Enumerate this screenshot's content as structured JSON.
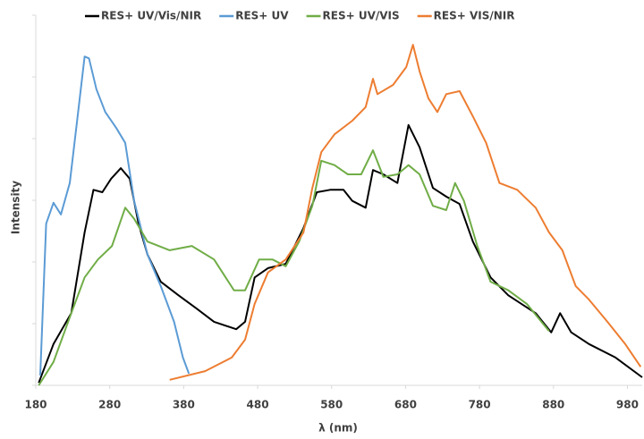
{
  "chart_data": {
    "type": "line",
    "x_label": "λ (nm)",
    "y_label": "Intensity",
    "xlim": [
      180,
      1000
    ],
    "xticks": [
      180,
      280,
      380,
      480,
      580,
      680,
      780,
      880,
      980
    ],
    "ylim": [
      0,
      6
    ],
    "yticks": [
      0,
      1,
      2,
      3,
      4,
      5,
      6
    ],
    "legend": "top",
    "series": [
      {
        "name": "RES+ UV/Vis/NIR",
        "color": "#000000",
        "x": [
          184,
          204,
          228,
          246,
          258,
          270,
          282,
          295,
          307,
          319,
          331,
          349,
          373,
          397,
          421,
          451,
          463,
          476,
          494,
          518,
          542,
          560,
          578,
          596,
          608,
          626,
          636,
          650,
          669,
          684,
          699,
          717,
          735,
          753,
          771,
          795,
          819,
          856,
          877,
          889,
          904,
          928,
          964,
          1000
        ],
        "values": [
          0.04,
          0.67,
          1.17,
          2.48,
          3.17,
          3.13,
          3.35,
          3.52,
          3.35,
          2.62,
          2.12,
          1.68,
          1.46,
          1.25,
          1.03,
          0.91,
          1.03,
          1.75,
          1.9,
          1.97,
          2.55,
          3.13,
          3.17,
          3.17,
          2.99,
          2.88,
          3.49,
          3.42,
          3.28,
          4.22,
          3.86,
          3.2,
          3.06,
          2.94,
          2.33,
          1.75,
          1.46,
          1.17,
          0.86,
          1.17,
          0.86,
          0.67,
          0.45,
          0.13
        ]
      },
      {
        "name": "RES+ UV",
        "color": "#5b9bd5",
        "x": [
          186,
          194,
          204,
          214,
          226,
          238,
          246,
          252,
          262,
          274,
          289,
          301,
          313,
          331,
          349,
          367,
          379,
          387
        ],
        "values": [
          0.16,
          2.62,
          2.96,
          2.77,
          3.28,
          4.51,
          5.33,
          5.3,
          4.8,
          4.43,
          4.17,
          3.93,
          2.99,
          2.12,
          1.61,
          1.03,
          0.45,
          0.19
        ]
      },
      {
        "name": "RES+ UV/VIS",
        "color": "#70ad47",
        "x": [
          184,
          204,
          228,
          246,
          264,
          283,
          301,
          313,
          331,
          361,
          391,
          421,
          448,
          463,
          482,
          500,
          518,
          536,
          554,
          566,
          584,
          602,
          620,
          636,
          650,
          669,
          684,
          699,
          717,
          735,
          747,
          759,
          777,
          795,
          819,
          844,
          874
        ],
        "values": [
          0,
          0.38,
          1.17,
          1.75,
          2.04,
          2.26,
          2.88,
          2.7,
          2.33,
          2.19,
          2.26,
          2.04,
          1.54,
          1.54,
          2.04,
          2.04,
          1.93,
          2.33,
          2.91,
          3.64,
          3.57,
          3.42,
          3.42,
          3.81,
          3.38,
          3.42,
          3.57,
          3.42,
          2.91,
          2.84,
          3.28,
          2.99,
          2.26,
          1.68,
          1.54,
          1.32,
          0.88
        ]
      },
      {
        "name": "RES+ VIS/NIR",
        "color": "#ed7d31",
        "x": [
          361,
          409,
          445,
          463,
          476,
          494,
          518,
          542,
          554,
          566,
          584,
          608,
          626,
          636,
          642,
          663,
          681,
          690,
          699,
          711,
          723,
          735,
          753,
          771,
          789,
          807,
          831,
          856,
          874,
          892,
          910,
          928,
          953,
          977,
          998
        ],
        "values": [
          0.09,
          0.23,
          0.45,
          0.74,
          1.32,
          1.83,
          2.04,
          2.48,
          3.2,
          3.78,
          4.07,
          4.29,
          4.51,
          4.97,
          4.72,
          4.87,
          5.16,
          5.52,
          5.09,
          4.65,
          4.43,
          4.72,
          4.77,
          4.36,
          3.93,
          3.28,
          3.17,
          2.88,
          2.48,
          2.19,
          1.61,
          1.39,
          1.03,
          0.67,
          0.3
        ]
      }
    ]
  }
}
